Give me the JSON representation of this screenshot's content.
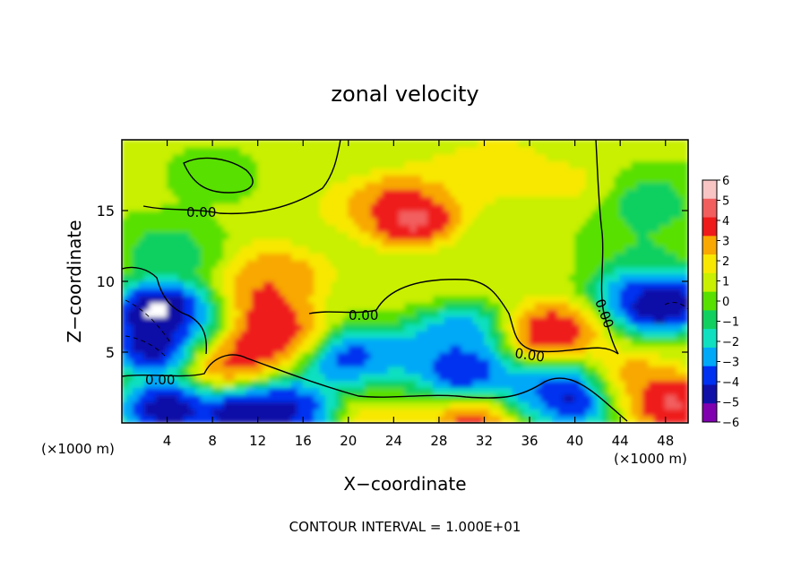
{
  "chart_data": {
    "type": "heatmap",
    "title": "zonal velocity",
    "xlabel": "X−coordinate",
    "ylabel": "Z−coordinate",
    "x_unit_left": "(×1000 m)",
    "x_unit_right": "(×1000 m)",
    "footer": "CONTOUR INTERVAL = 1.000E+01",
    "xlim": [
      0,
      50
    ],
    "ylim": [
      0,
      20
    ],
    "x_ticks": [
      "4",
      "8",
      "12",
      "16",
      "20",
      "24",
      "28",
      "32",
      "36",
      "40",
      "44",
      "48"
    ],
    "y_ticks": [
      "5",
      "10",
      "15"
    ],
    "colorbar": {
      "min": -6,
      "max": 6,
      "tick_labels": [
        "6",
        "5",
        "4",
        "3",
        "2",
        "1",
        "0",
        "−1",
        "−2",
        "−3",
        "−4",
        "−5",
        "−6"
      ],
      "colors": [
        "#f8c4c4",
        "#f25e5e",
        "#ef1a1a",
        "#f8a800",
        "#f8e800",
        "#c8f000",
        "#58e000",
        "#10d060",
        "#10e0c0",
        "#00a8f8",
        "#0030f0",
        "#1010a8",
        "#8000b0"
      ]
    },
    "contour_labels": [
      "0.00",
      "0.00",
      "0.00",
      "0.00",
      "0.00"
    ],
    "blobs": [
      {
        "x": 25.5,
        "z": 14.6,
        "value": 6.5
      },
      {
        "x": 24.5,
        "z": 15.5,
        "value": 4.5
      },
      {
        "x": 21.0,
        "z": 15.0,
        "value": 3.0
      },
      {
        "x": 29.0,
        "z": 17.0,
        "value": 2.6
      },
      {
        "x": 33.5,
        "z": 18.0,
        "value": 2.8
      },
      {
        "x": 14.5,
        "z": 11.0,
        "value": 4.0
      },
      {
        "x": 12.5,
        "z": 9.0,
        "value": 4.5
      },
      {
        "x": 11.5,
        "z": 6.5,
        "value": 6.0
      },
      {
        "x": 9.5,
        "z": 4.5,
        "value": 4.8
      },
      {
        "x": 14.0,
        "z": 6.5,
        "value": 4.5
      },
      {
        "x": 38.0,
        "z": 6.5,
        "value": 5.5
      },
      {
        "x": 44.5,
        "z": 3.0,
        "value": 4.0
      },
      {
        "x": 48.5,
        "z": 1.5,
        "value": 6.0
      },
      {
        "x": 31.5,
        "z": 0.3,
        "value": 5.5
      },
      {
        "x": 23.5,
        "z": 0.5,
        "value": 3.0
      },
      {
        "x": 3.5,
        "z": 8.0,
        "value": -8.0
      },
      {
        "x": 3.0,
        "z": 5.5,
        "value": -7.0
      },
      {
        "x": 7.0,
        "z": 7.0,
        "value": -4.0
      },
      {
        "x": 4.0,
        "z": 1.0,
        "value": -7.0
      },
      {
        "x": 11.0,
        "z": 0.5,
        "value": -7.5
      },
      {
        "x": 15.0,
        "z": 1.0,
        "value": -6.0
      },
      {
        "x": 20.5,
        "z": 4.5,
        "value": -5.5
      },
      {
        "x": 29.5,
        "z": 6.5,
        "value": -4.5
      },
      {
        "x": 30.0,
        "z": 3.5,
        "value": -6.5
      },
      {
        "x": 25.0,
        "z": 4.5,
        "value": -4.0
      },
      {
        "x": 35.5,
        "z": 2.0,
        "value": -4.0
      },
      {
        "x": 40.0,
        "z": 2.0,
        "value": -7.0
      },
      {
        "x": 47.5,
        "z": 8.5,
        "value": -8.0
      },
      {
        "x": 46.0,
        "z": 9.5,
        "value": -4.0
      },
      {
        "x": 39.5,
        "z": 17.0,
        "value": 2.0
      },
      {
        "x": 46.5,
        "z": 15.5,
        "value": -1.5
      },
      {
        "x": 46.0,
        "z": 12.5,
        "value": -0.8
      },
      {
        "x": 34.0,
        "z": 10.5,
        "value": 1.5
      },
      {
        "x": 8.0,
        "z": 17.5,
        "value": 0.3
      },
      {
        "x": 4.0,
        "z": 12.0,
        "value": -1.5
      },
      {
        "x": 17.0,
        "z": 13.0,
        "value": 0.8
      },
      {
        "x": 27.0,
        "z": 9.5,
        "value": 1.0
      },
      {
        "x": 24.0,
        "z": 2.5,
        "value": -1.0
      }
    ]
  }
}
